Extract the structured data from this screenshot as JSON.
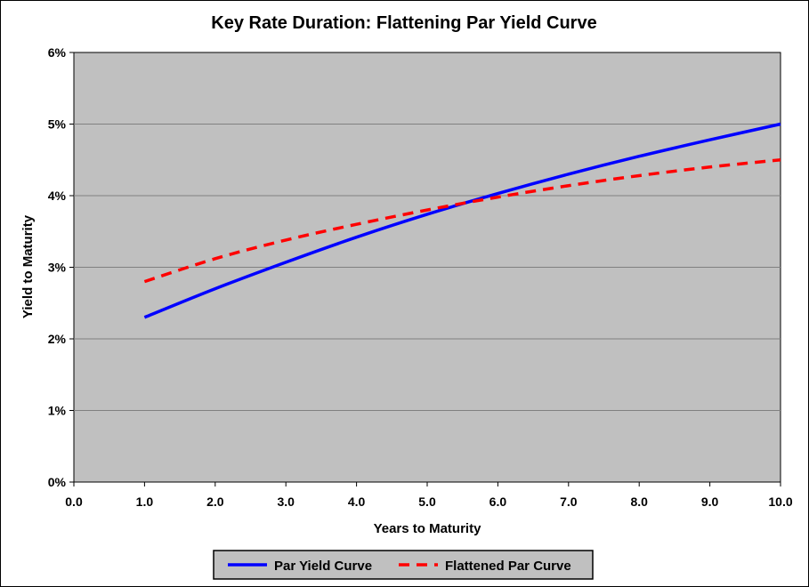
{
  "chart_data": {
    "type": "line",
    "title": "Key Rate Duration: Flattening Par Yield Curve",
    "xlabel": "Years to Maturity",
    "ylabel": "Yield to Maturity",
    "xlim": [
      0,
      10
    ],
    "ylim": [
      0,
      6
    ],
    "x_ticks": [
      "0.0",
      "1.0",
      "2.0",
      "3.0",
      "4.0",
      "5.0",
      "6.0",
      "7.0",
      "8.0",
      "9.0",
      "10.0"
    ],
    "y_ticks": [
      "0%",
      "1%",
      "2%",
      "3%",
      "4%",
      "5%",
      "6%"
    ],
    "grid": true,
    "legend_position": "bottom",
    "plot_background": "#c0c0c0",
    "series": [
      {
        "name": "Par Yield Curve",
        "color": "#0000ff",
        "style": "solid",
        "x": [
          1,
          2,
          3,
          4,
          5,
          6,
          7,
          8,
          9,
          10
        ],
        "y": [
          2.3,
          2.7,
          3.07,
          3.42,
          3.74,
          4.03,
          4.3,
          4.55,
          4.78,
          5.0
        ]
      },
      {
        "name": "Flattened Par Curve",
        "color": "#ff0000",
        "style": "dashed",
        "x": [
          1,
          2,
          3,
          4,
          5,
          6,
          7,
          8,
          9,
          10
        ],
        "y": [
          2.8,
          3.12,
          3.38,
          3.6,
          3.8,
          3.98,
          4.14,
          4.28,
          4.4,
          4.5
        ]
      }
    ]
  }
}
